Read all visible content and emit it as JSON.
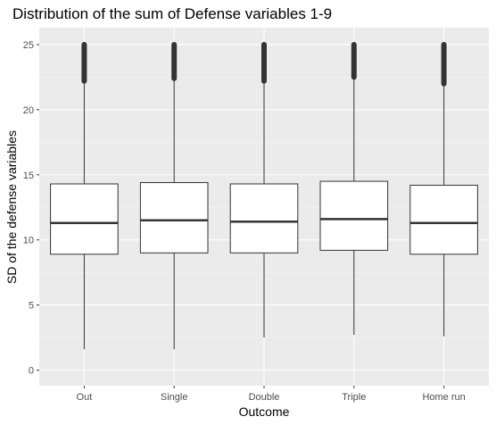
{
  "chart_data": {
    "type": "boxplot",
    "title": "Distribution of the sum of Defense variables 1-9",
    "xlabel": "Outcome",
    "ylabel": "SD of the defense variables",
    "ylim": [
      -1.2,
      26.3
    ],
    "yticks": [
      0,
      5,
      10,
      15,
      20,
      25
    ],
    "categories": [
      "Out",
      "Single",
      "Double",
      "Triple",
      "Home run"
    ],
    "boxes": [
      {
        "category": "Out",
        "min": 1.6,
        "q1": 8.9,
        "median": 11.3,
        "q3": 14.3,
        "whisker_high": 22.2,
        "outliers_from": 22.2,
        "outliers_to": 25.0
      },
      {
        "category": "Single",
        "min": 1.6,
        "q1": 9.0,
        "median": 11.5,
        "q3": 14.4,
        "whisker_high": 22.4,
        "outliers_from": 22.4,
        "outliers_to": 25.0
      },
      {
        "category": "Double",
        "min": 2.5,
        "q1": 9.0,
        "median": 11.4,
        "q3": 14.3,
        "whisker_high": 22.2,
        "outliers_from": 22.2,
        "outliers_to": 25.0
      },
      {
        "category": "Triple",
        "min": 2.7,
        "q1": 9.2,
        "median": 11.6,
        "q3": 14.5,
        "whisker_high": 22.5,
        "outliers_from": 22.5,
        "outliers_to": 25.0
      },
      {
        "category": "Home run",
        "min": 2.6,
        "q1": 8.9,
        "median": 11.3,
        "q3": 14.2,
        "whisker_high": 22.0,
        "outliers_from": 22.0,
        "outliers_to": 25.0
      }
    ],
    "grid": true,
    "legend": "none",
    "colors": {
      "panel": "#ebebeb",
      "grid_major": "#ffffff",
      "grid_minor": "#f5f5f5",
      "box_fill": "#ffffff",
      "line": "#333333"
    }
  }
}
